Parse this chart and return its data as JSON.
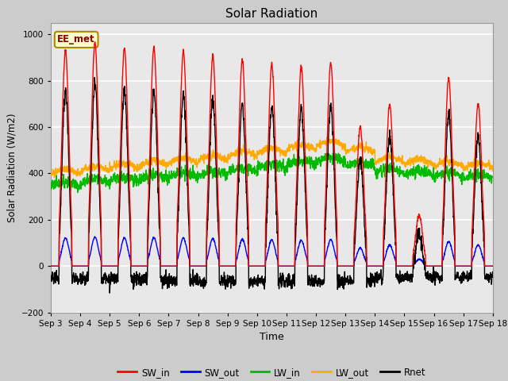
{
  "title": "Solar Radiation",
  "xlabel": "Time",
  "ylabel": "Solar Radiation (W/m2)",
  "ylim": [
    -200,
    1050
  ],
  "yticks": [
    -200,
    0,
    200,
    400,
    600,
    800,
    1000
  ],
  "n_days": 15,
  "pts_per_day": 144,
  "colors": {
    "SW_in": "#ff0000",
    "SW_out": "#0000ff",
    "LW_in": "#00bb00",
    "LW_out": "#ffaa00",
    "Rnet": "#000000"
  },
  "legend_label": "EE_met",
  "fig_bg": "#cccccc",
  "ax_bg": "#e8e8e8",
  "gridcolor": "#ffffff",
  "lw": 1.0,
  "xtick_labels": [
    "Sep 3",
    "Sep 4",
    "Sep 5",
    "Sep 6",
    "Sep 7",
    "Sep 8",
    "Sep 9",
    "Sep 10",
    "Sep 11",
    "Sep 12",
    "Sep 13",
    "Sep 14",
    "Sep 15",
    "Sep 16",
    "Sep 17",
    "Sep 18"
  ]
}
